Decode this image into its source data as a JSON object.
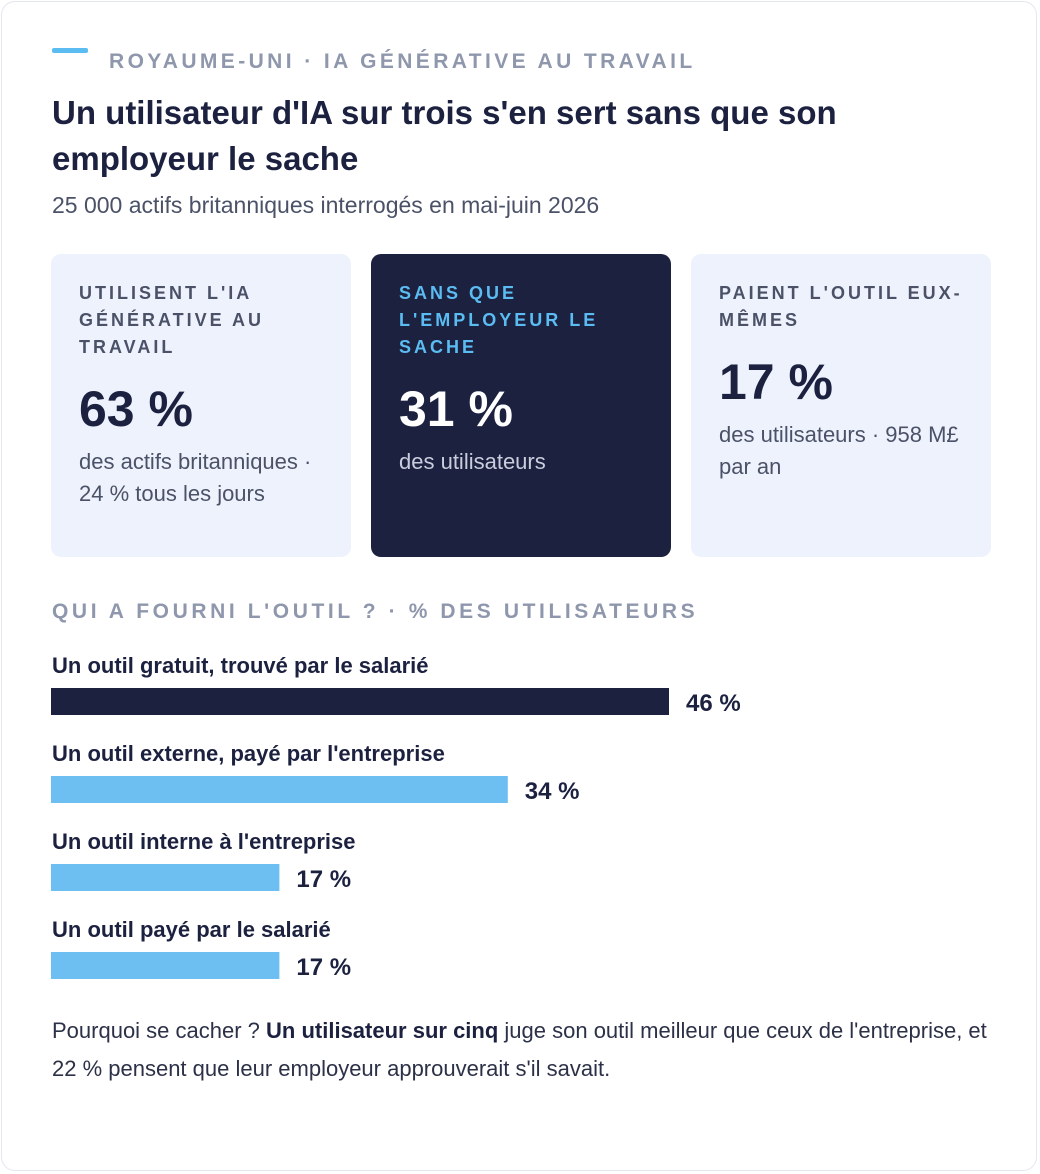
{
  "kicker": "ROYAUME-UNI · IA GÉNÉRATIVE AU TRAVAIL",
  "title": "Un utilisateur d'IA sur trois s'en sert sans que son employeur le sache",
  "subtitle": "25 000 actifs britanniques interrogés en mai-juin 2026",
  "stats": [
    {
      "label": "Utilisent l'IA générative au travail",
      "value": "63 %",
      "desc": "des actifs britanniques · 24 % tous les jours"
    },
    {
      "label": "Sans que l'employeur le sache",
      "value": "31 %",
      "desc": "des utilisateurs"
    },
    {
      "label": "Paient l'outil eux-mêmes",
      "value": "17 %",
      "desc": "des utilisateurs · 958 M£ par an"
    }
  ],
  "chart_heading": "QUI A FOURNI L'OUTIL ? · % DES UTILISATEURS",
  "chart_data": {
    "type": "bar",
    "orientation": "horizontal",
    "categories": [
      "Un outil gratuit, trouvé par le salarié",
      "Un outil externe, payé par l'entreprise",
      "Un outil interne à l'entreprise",
      "Un outil payé par le salarié"
    ],
    "values": [
      46,
      34,
      17,
      17
    ],
    "value_labels": [
      "46 %",
      "34 %",
      "17 %",
      "17 %"
    ],
    "unit": "%",
    "xlim": [
      0,
      70
    ],
    "grid": false,
    "colors": [
      "#1c2140",
      "#6cbff0",
      "#6cbff0",
      "#6cbff0"
    ]
  },
  "footnote": {
    "lead": "Pourquoi se cacher ? ",
    "strong": "Un utilisateur sur cinq",
    "rest": " juge son outil meilleur que ceux de l'entreprise, et 22 % pensent que leur employeur approuverait s'il savait."
  }
}
